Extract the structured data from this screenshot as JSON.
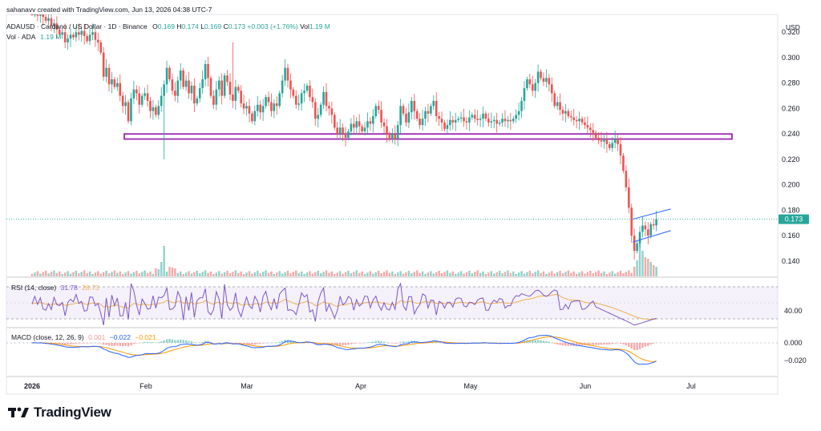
{
  "header": {
    "created_line": "sahanavv created with TradingView.com, Jun 13, 2026 04:38 UTC-7",
    "symbol_line": "ADAUSD · Cardano / US Dollar · 1D · Binance",
    "ohlc": {
      "o_label": "O",
      "o": "0.169",
      "h_label": "H",
      "h": "0.174",
      "l_label": "L",
      "l": "0.169",
      "c_label": "C",
      "c": "0.173",
      "change": "+0.003 (+1.76%)",
      "vol_label": "Vol",
      "vol": "1.19 M"
    },
    "vol_line_label": "Vol · ADA",
    "vol_line_value": "1.19 M",
    "currency": "USD"
  },
  "indicators": {
    "rsi": {
      "label": "RSI (14, close)",
      "value": "31.78",
      "ma": "28.73",
      "level": "40.00"
    },
    "macd": {
      "label": "MACD (close, 12, 26, 9)",
      "hist": "0.001",
      "macd": "−0.022",
      "signal": "−0.021"
    }
  },
  "price_badge": "0.173",
  "logo_text": "TradingView",
  "colors": {
    "up": "#26a69a",
    "down": "#ef5350",
    "zone": "#9c27b0",
    "channel": "#2962ff",
    "rsi": "#7e57c2",
    "rsi_ma": "#f0b04f",
    "macd": "#2962ff",
    "signal": "#ff9800"
  },
  "chart_data": {
    "type": "candlestick",
    "interval": "1D",
    "y_axis": {
      "ticks": [
        "0.320",
        "0.300",
        "0.280",
        "0.260",
        "0.240",
        "0.220",
        "0.200",
        "0.180",
        "0.160",
        "0.140"
      ],
      "ylim": [
        0.128,
        0.334
      ]
    },
    "x_axis": {
      "ticks": [
        "2026",
        "Feb",
        "Mar",
        "Apr",
        "May",
        "Jun",
        "Jul"
      ]
    },
    "rsi_axis": {
      "ticks": [
        "40.00"
      ]
    },
    "macd_axis": {
      "ticks": [
        "0.000",
        "−0.020"
      ]
    },
    "close": [
      0.335,
      0.338,
      0.333,
      0.336,
      0.332,
      0.329,
      0.331,
      0.325,
      0.327,
      0.322,
      0.318,
      0.32,
      0.312,
      0.315,
      0.318,
      0.316,
      0.32,
      0.318,
      0.321,
      0.317,
      0.313,
      0.318,
      0.32,
      0.314,
      0.312,
      0.304,
      0.285,
      0.292,
      0.279,
      0.283,
      0.277,
      0.28,
      0.27,
      0.262,
      0.265,
      0.25,
      0.268,
      0.275,
      0.272,
      0.263,
      0.27,
      0.272,
      0.266,
      0.258,
      0.261,
      0.255,
      0.262,
      0.27,
      0.279,
      0.292,
      0.283,
      0.274,
      0.27,
      0.282,
      0.29,
      0.277,
      0.282,
      0.272,
      0.278,
      0.264,
      0.268,
      0.276,
      0.283,
      0.295,
      0.284,
      0.27,
      0.263,
      0.275,
      0.282,
      0.27,
      0.286,
      0.281,
      0.271,
      0.266,
      0.277,
      0.274,
      0.264,
      0.26,
      0.262,
      0.256,
      0.25,
      0.258,
      0.263,
      0.257,
      0.262,
      0.269,
      0.265,
      0.258,
      0.264,
      0.262,
      0.272,
      0.282,
      0.292,
      0.282,
      0.275,
      0.27,
      0.263,
      0.264,
      0.272,
      0.274,
      0.278,
      0.269,
      0.265,
      0.252,
      0.255,
      0.263,
      0.273,
      0.262,
      0.26,
      0.255,
      0.245,
      0.24,
      0.245,
      0.24,
      0.237,
      0.242,
      0.248,
      0.245,
      0.25,
      0.246,
      0.242,
      0.245,
      0.25,
      0.248,
      0.254,
      0.262,
      0.259,
      0.249,
      0.246,
      0.24,
      0.236,
      0.24,
      0.236,
      0.247,
      0.262,
      0.256,
      0.249,
      0.257,
      0.266,
      0.258,
      0.252,
      0.247,
      0.252,
      0.258,
      0.256,
      0.262,
      0.266,
      0.254,
      0.252,
      0.249,
      0.244,
      0.247,
      0.251,
      0.249,
      0.251,
      0.252,
      0.253,
      0.25,
      0.249,
      0.253,
      0.255,
      0.252,
      0.251,
      0.252,
      0.256,
      0.252,
      0.249,
      0.25,
      0.251,
      0.248,
      0.249,
      0.252,
      0.25,
      0.251,
      0.25,
      0.252,
      0.255,
      0.258,
      0.266,
      0.276,
      0.283,
      0.279,
      0.274,
      0.28,
      0.289,
      0.284,
      0.281,
      0.284,
      0.279,
      0.272,
      0.262,
      0.265,
      0.259,
      0.256,
      0.258,
      0.254,
      0.253,
      0.251,
      0.25,
      0.252,
      0.249,
      0.247,
      0.245,
      0.243,
      0.241,
      0.237,
      0.235,
      0.234,
      0.236,
      0.232,
      0.229,
      0.233,
      0.236,
      0.232,
      0.223,
      0.211,
      0.198,
      0.182,
      0.16,
      0.148,
      0.154,
      0.163,
      0.168,
      0.165,
      0.16,
      0.169,
      0.168,
      0.173
    ],
    "open_first": 0.336,
    "volume_shape": "low baseline with spikes near Feb and large spikes in June selloff",
    "horizontal_zone": {
      "low": 0.236,
      "high": 0.24
    },
    "channel": {
      "upper": [
        0.173,
        0.181
      ],
      "lower": [
        0.155,
        0.164
      ]
    }
  }
}
